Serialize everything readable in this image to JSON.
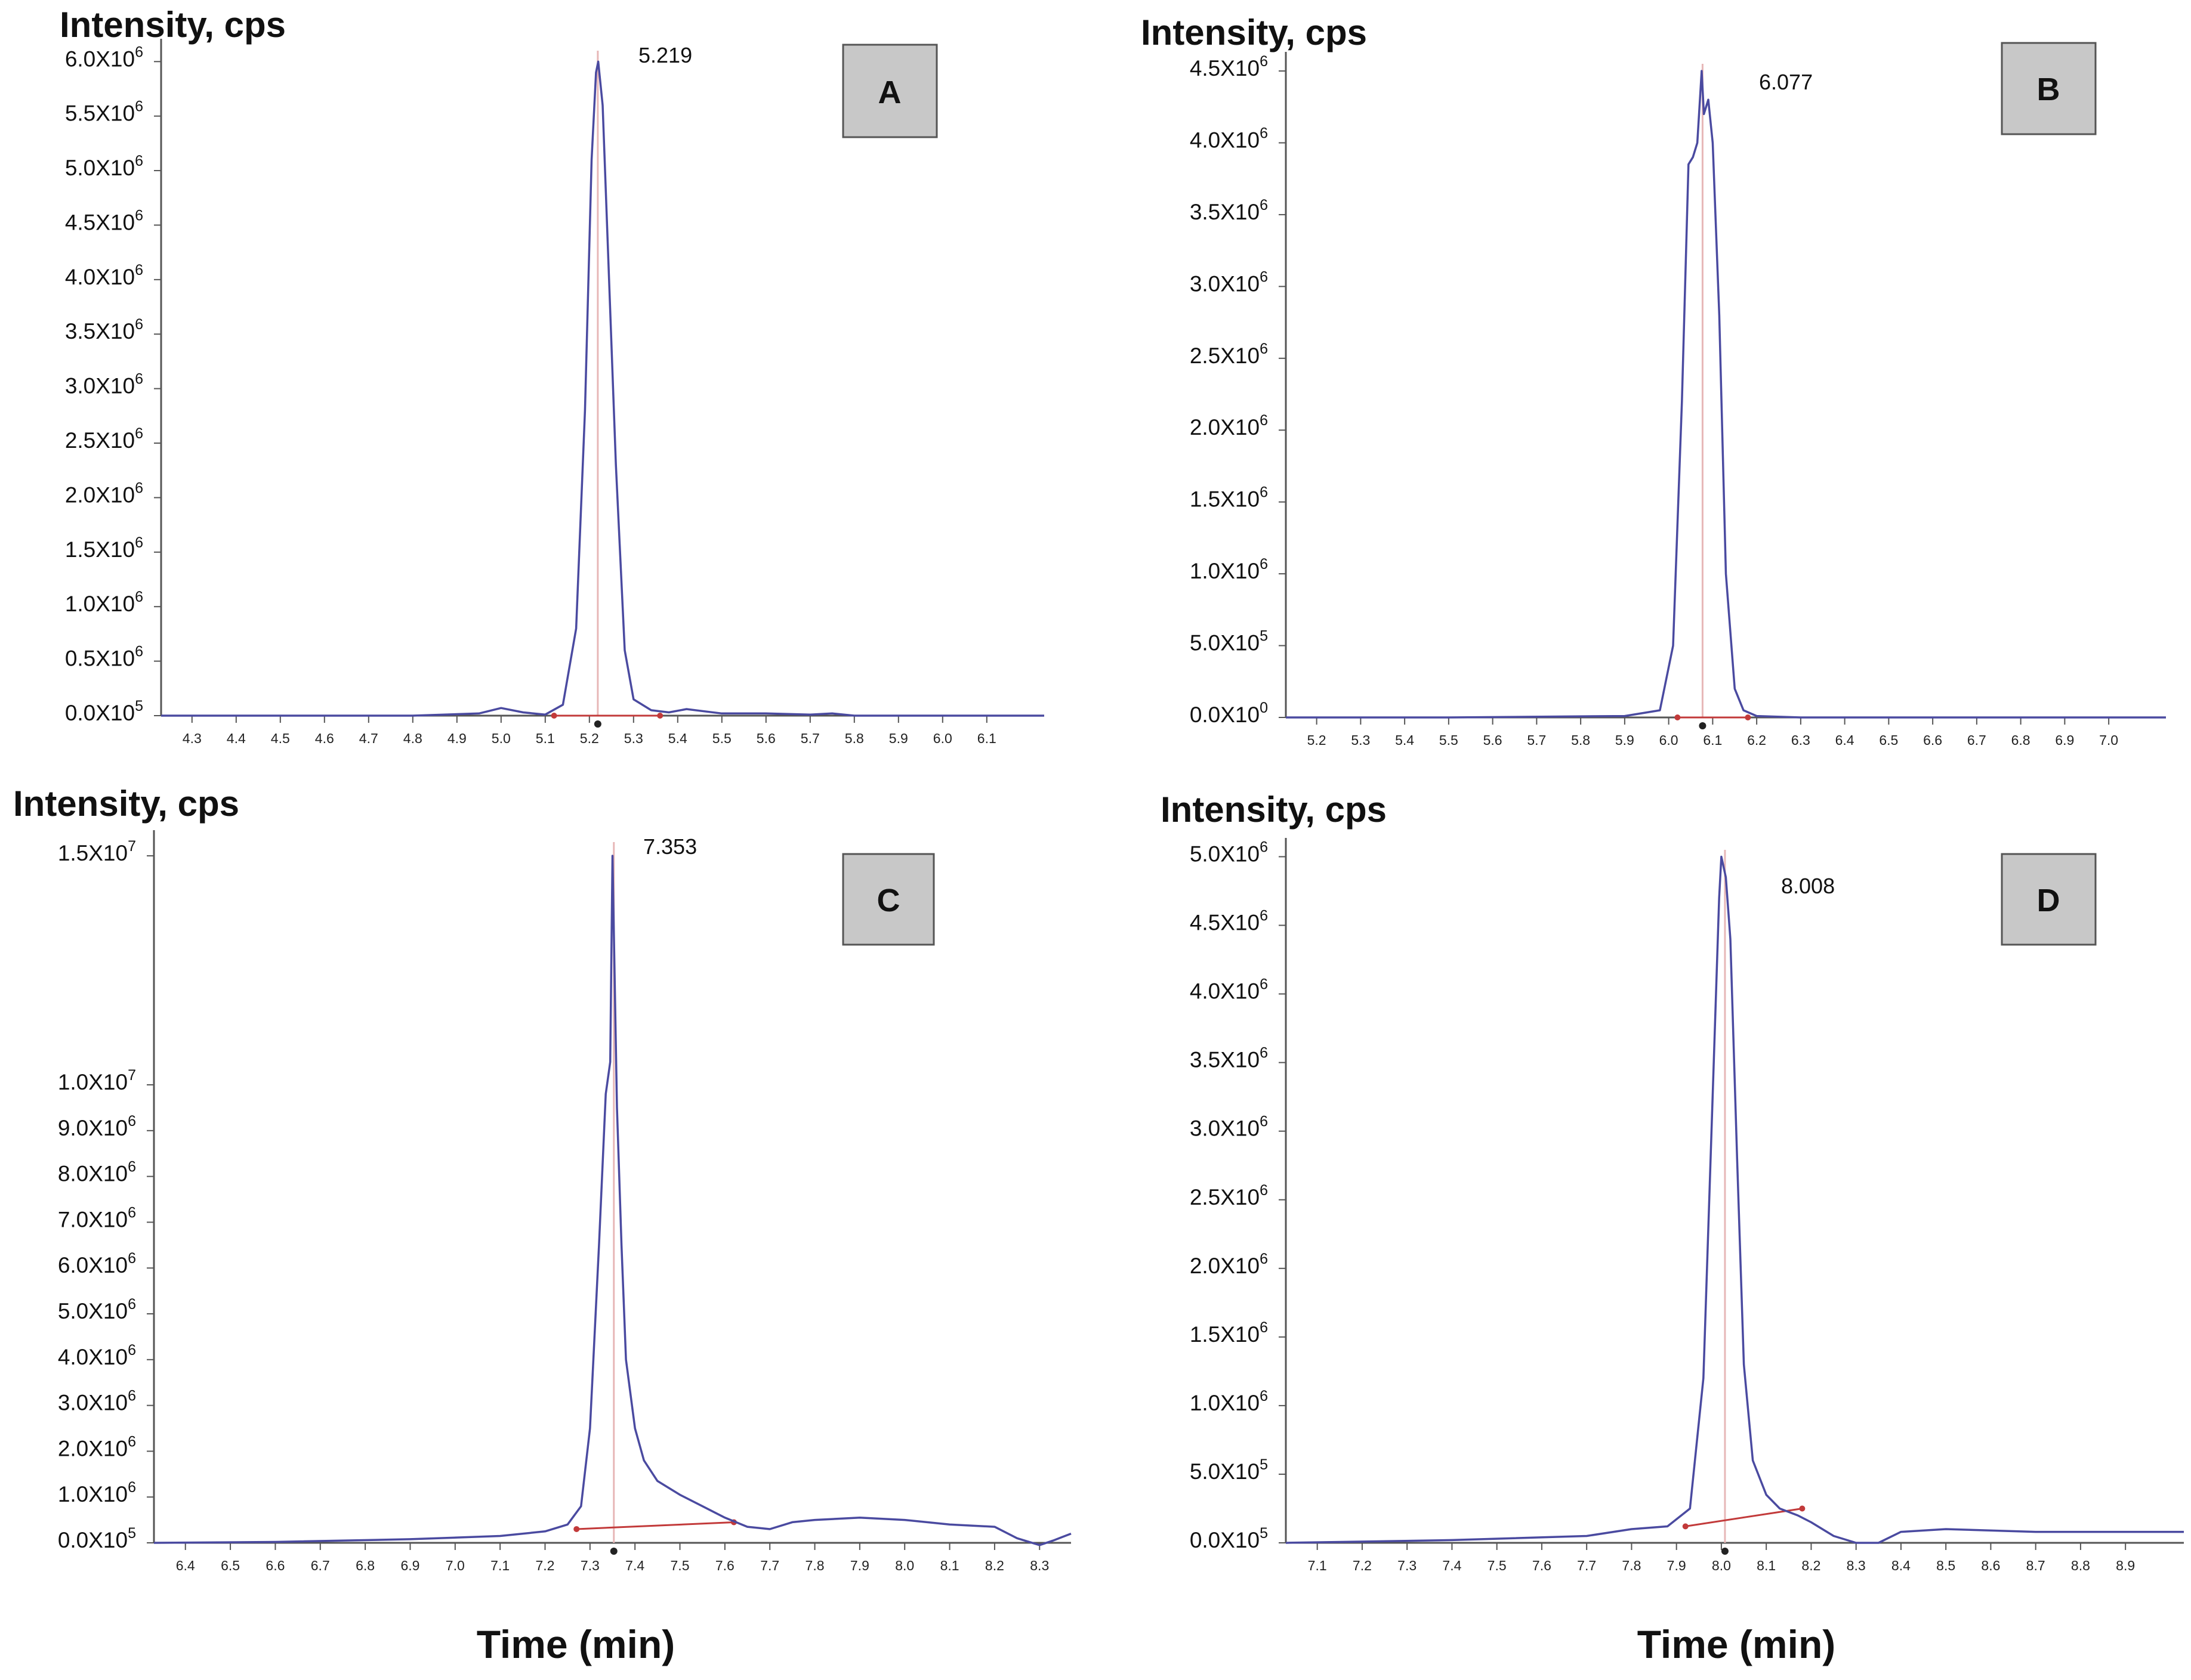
{
  "figure": {
    "x_axis_title": "Time (min)",
    "colors": {
      "trace": "#4a4aa0",
      "retention_marker": "#e7b7b7",
      "baseline": "#c23a3a",
      "axis": "#555555",
      "badge_fill": "#c8c8c8"
    }
  },
  "chart_data": [
    {
      "type": "line",
      "panel": "A",
      "title": "A",
      "ylabel": "Intensity, cps",
      "xlabel": "",
      "peak_label": "5.219",
      "peak_time": 5.219,
      "xlim": [
        4.23,
        6.23
      ],
      "ylim": [
        0,
        6.1
      ],
      "x_ticks": [
        4.3,
        4.4,
        4.5,
        4.6,
        4.7,
        4.8,
        4.9,
        5.0,
        5.1,
        5.2,
        5.3,
        5.4,
        5.5,
        5.6,
        5.7,
        5.8,
        5.9,
        6.0,
        6.1
      ],
      "x_tick_labels": [
        "4.3",
        "4.4",
        "4.5",
        "4.6",
        "4.7",
        "4.8",
        "4.9",
        "5.0",
        "5.1",
        "5.2",
        "5.3",
        "5.4",
        "5.5",
        "5.6",
        "5.7",
        "5.8",
        "5.9",
        "6.0",
        "6.1"
      ],
      "y_ticks": [
        {
          "value": 0,
          "mantissa": "0.0X10",
          "exp": "5"
        },
        {
          "value": 0.5,
          "mantissa": "0.5X10",
          "exp": "6"
        },
        {
          "value": 1.0,
          "mantissa": "1.0X10",
          "exp": "6"
        },
        {
          "value": 1.5,
          "mantissa": "1.5X10",
          "exp": "6"
        },
        {
          "value": 2.0,
          "mantissa": "2.0X10",
          "exp": "6"
        },
        {
          "value": 2.5,
          "mantissa": "2.5X10",
          "exp": "6"
        },
        {
          "value": 3.0,
          "mantissa": "3.0X10",
          "exp": "6"
        },
        {
          "value": 3.5,
          "mantissa": "3.5X10",
          "exp": "6"
        },
        {
          "value": 4.0,
          "mantissa": "4.0X10",
          "exp": "6"
        },
        {
          "value": 4.5,
          "mantissa": "4.5X10",
          "exp": "6"
        },
        {
          "value": 5.0,
          "mantissa": "5.0X10",
          "exp": "6"
        },
        {
          "value": 5.5,
          "mantissa": "5.5X10",
          "exp": "6"
        },
        {
          "value": 6.0,
          "mantissa": "6.0X10",
          "exp": "6"
        }
      ],
      "series": [
        {
          "name": "trace",
          "x": [
            4.23,
            4.5,
            4.8,
            4.95,
            5.0,
            5.05,
            5.1,
            5.14,
            5.17,
            5.19,
            5.205,
            5.215,
            5.22,
            5.23,
            5.24,
            5.26,
            5.28,
            5.3,
            5.34,
            5.38,
            5.42,
            5.46,
            5.5,
            5.6,
            5.7,
            5.75,
            5.8,
            5.9,
            6.0,
            6.23
          ],
          "y": [
            0.0,
            0.0,
            0.0,
            0.02,
            0.07,
            0.03,
            0.01,
            0.1,
            0.8,
            2.8,
            5.1,
            5.9,
            6.0,
            5.6,
            4.5,
            2.3,
            0.6,
            0.15,
            0.05,
            0.03,
            0.06,
            0.04,
            0.02,
            0.02,
            0.01,
            0.02,
            0.0,
            0.0,
            0.0,
            0.0
          ]
        }
      ],
      "baseline": {
        "x": [
          5.12,
          5.36
        ],
        "y": [
          0.0,
          0.0
        ]
      }
    },
    {
      "type": "line",
      "panel": "B",
      "title": "B",
      "ylabel": "Intensity, cps",
      "xlabel": "",
      "peak_label": "6.077",
      "peak_time": 6.077,
      "xlim": [
        5.13,
        7.13
      ],
      "ylim": [
        0,
        4.55
      ],
      "x_ticks": [
        5.2,
        5.3,
        5.4,
        5.5,
        5.6,
        5.7,
        5.8,
        5.9,
        6.0,
        6.1,
        6.2,
        6.3,
        6.4,
        6.5,
        6.6,
        6.7,
        6.8,
        6.9,
        7.0
      ],
      "x_tick_labels": [
        "5.2",
        "5.3",
        "5.4",
        "5.5",
        "5.6",
        "5.7",
        "5.8",
        "5.9",
        "6.0",
        "6.1",
        "6.2",
        "6.3",
        "6.4",
        "6.5",
        "6.6",
        "6.7",
        "6.8",
        "6.9",
        "7.0"
      ],
      "y_ticks": [
        {
          "value": 0,
          "mantissa": "0.0X10",
          "exp": "0"
        },
        {
          "value": 0.5,
          "mantissa": "5.0X10",
          "exp": "5"
        },
        {
          "value": 1.0,
          "mantissa": "1.0X10",
          "exp": "6"
        },
        {
          "value": 1.5,
          "mantissa": "1.5X10",
          "exp": "6"
        },
        {
          "value": 2.0,
          "mantissa": "2.0X10",
          "exp": "6"
        },
        {
          "value": 2.5,
          "mantissa": "2.5X10",
          "exp": "6"
        },
        {
          "value": 3.0,
          "mantissa": "3.0X10",
          "exp": "6"
        },
        {
          "value": 3.5,
          "mantissa": "3.5X10",
          "exp": "6"
        },
        {
          "value": 4.0,
          "mantissa": "4.0X10",
          "exp": "6"
        },
        {
          "value": 4.5,
          "mantissa": "4.5X10",
          "exp": "6"
        }
      ],
      "series": [
        {
          "name": "trace",
          "x": [
            5.13,
            5.5,
            5.9,
            5.98,
            6.01,
            6.03,
            6.045,
            6.055,
            6.065,
            6.075,
            6.08,
            6.09,
            6.1,
            6.115,
            6.13,
            6.15,
            6.17,
            6.2,
            6.3,
            6.6,
            7.13
          ],
          "y": [
            0.0,
            0.0,
            0.01,
            0.05,
            0.5,
            2.2,
            3.85,
            3.9,
            4.0,
            4.5,
            4.2,
            4.3,
            4.0,
            2.8,
            1.0,
            0.2,
            0.05,
            0.01,
            0.0,
            0.0,
            0.0
          ]
        }
      ],
      "baseline": {
        "x": [
          6.02,
          6.18
        ],
        "y": [
          0.0,
          0.0
        ]
      }
    },
    {
      "type": "line",
      "panel": "C",
      "title": "C",
      "ylabel": "Intensity, cps",
      "xlabel": "",
      "peak_label": "7.353",
      "peak_time": 7.353,
      "xlim": [
        6.33,
        8.37
      ],
      "ylim": [
        0,
        15.3
      ],
      "x_ticks": [
        6.4,
        6.5,
        6.6,
        6.7,
        6.8,
        6.9,
        7.0,
        7.1,
        7.2,
        7.3,
        7.4,
        7.5,
        7.6,
        7.7,
        7.8,
        7.9,
        8.0,
        8.1,
        8.2,
        8.3
      ],
      "x_tick_labels": [
        "6.4",
        "6.5",
        "6.6",
        "6.7",
        "6.8",
        "6.9",
        "7.0",
        "7.1",
        "7.2",
        "7.3",
        "7.4",
        "7.5",
        "7.6",
        "7.7",
        "7.8",
        "7.9",
        "8.0",
        "8.1",
        "8.2",
        "8.3"
      ],
      "y_ticks": [
        {
          "value": 0,
          "mantissa": "0.0X10",
          "exp": "5"
        },
        {
          "value": 1.0,
          "mantissa": "1.0X10",
          "exp": "6"
        },
        {
          "value": 2.0,
          "mantissa": "2.0X10",
          "exp": "6"
        },
        {
          "value": 3.0,
          "mantissa": "3.0X10",
          "exp": "6"
        },
        {
          "value": 4.0,
          "mantissa": "4.0X10",
          "exp": "6"
        },
        {
          "value": 5.0,
          "mantissa": "5.0X10",
          "exp": "6"
        },
        {
          "value": 6.0,
          "mantissa": "6.0X10",
          "exp": "6"
        },
        {
          "value": 7.0,
          "mantissa": "7.0X10",
          "exp": "6"
        },
        {
          "value": 8.0,
          "mantissa": "8.0X10",
          "exp": "6"
        },
        {
          "value": 9.0,
          "mantissa": "9.0X10",
          "exp": "6"
        },
        {
          "value": 10.0,
          "mantissa": "1.0X10",
          "exp": "7"
        },
        {
          "value": 15.0,
          "mantissa": "1.5X10",
          "exp": "7"
        }
      ],
      "series": [
        {
          "name": "trace",
          "x": [
            6.33,
            6.6,
            6.9,
            7.1,
            7.2,
            7.25,
            7.28,
            7.3,
            7.32,
            7.335,
            7.345,
            7.35,
            7.36,
            7.37,
            7.38,
            7.4,
            7.42,
            7.45,
            7.5,
            7.55,
            7.6,
            7.65,
            7.7,
            7.75,
            7.8,
            7.9,
            8.0,
            8.1,
            8.2,
            8.25,
            8.3,
            8.33,
            8.37
          ],
          "y": [
            0.0,
            0.02,
            0.08,
            0.15,
            0.25,
            0.4,
            0.8,
            2.5,
            6.5,
            9.8,
            10.5,
            15.0,
            9.5,
            6.5,
            4.0,
            2.5,
            1.8,
            1.35,
            1.05,
            0.8,
            0.55,
            0.35,
            0.3,
            0.45,
            0.5,
            0.55,
            0.5,
            0.4,
            0.35,
            0.1,
            -0.05,
            0.05,
            0.2
          ]
        }
      ],
      "baseline": {
        "x": [
          7.27,
          7.62
        ],
        "y": [
          0.3,
          0.45
        ]
      }
    },
    {
      "type": "line",
      "panel": "D",
      "title": "D",
      "ylabel": "Intensity, cps",
      "xlabel": "",
      "peak_label": "8.008",
      "peak_time": 8.008,
      "xlim": [
        7.03,
        9.03
      ],
      "ylim": [
        0,
        5.05
      ],
      "x_ticks": [
        7.1,
        7.2,
        7.3,
        7.4,
        7.5,
        7.6,
        7.7,
        7.8,
        7.9,
        8.0,
        8.1,
        8.2,
        8.3,
        8.4,
        8.5,
        8.6,
        8.7,
        8.8,
        8.9
      ],
      "x_tick_labels": [
        "7.1",
        "7.2",
        "7.3",
        "7.4",
        "7.5",
        "7.6",
        "7.7",
        "7.8",
        "7.9",
        "8.0",
        "8.1",
        "8.2",
        "8.3",
        "8.4",
        "8.5",
        "8.6",
        "8.7",
        "8.8",
        "8.9"
      ],
      "y_ticks": [
        {
          "value": 0,
          "mantissa": "0.0X10",
          "exp": "5"
        },
        {
          "value": 0.5,
          "mantissa": "5.0X10",
          "exp": "5"
        },
        {
          "value": 1.0,
          "mantissa": "1.0X10",
          "exp": "6"
        },
        {
          "value": 1.5,
          "mantissa": "1.5X10",
          "exp": "6"
        },
        {
          "value": 2.0,
          "mantissa": "2.0X10",
          "exp": "6"
        },
        {
          "value": 2.5,
          "mantissa": "2.5X10",
          "exp": "6"
        },
        {
          "value": 3.0,
          "mantissa": "3.0X10",
          "exp": "6"
        },
        {
          "value": 3.5,
          "mantissa": "3.5X10",
          "exp": "6"
        },
        {
          "value": 4.0,
          "mantissa": "4.0X10",
          "exp": "6"
        },
        {
          "value": 4.5,
          "mantissa": "4.5X10",
          "exp": "6"
        },
        {
          "value": 5.0,
          "mantissa": "5.0X10",
          "exp": "6"
        }
      ],
      "series": [
        {
          "name": "trace",
          "x": [
            7.03,
            7.4,
            7.7,
            7.8,
            7.88,
            7.93,
            7.96,
            7.98,
            7.995,
            8.0,
            8.01,
            8.02,
            8.035,
            8.05,
            8.07,
            8.1,
            8.13,
            8.17,
            8.2,
            8.25,
            8.3,
            8.35,
            8.4,
            8.5,
            8.7,
            9.03
          ],
          "y": [
            0.0,
            0.02,
            0.05,
            0.1,
            0.12,
            0.25,
            1.2,
            3.2,
            4.7,
            5.0,
            4.85,
            4.4,
            2.8,
            1.3,
            0.6,
            0.35,
            0.25,
            0.2,
            0.15,
            0.05,
            0.0,
            0.0,
            0.08,
            0.1,
            0.08,
            0.08
          ]
        }
      ],
      "baseline": {
        "x": [
          7.92,
          8.18
        ],
        "y": [
          0.12,
          0.25
        ]
      }
    }
  ]
}
